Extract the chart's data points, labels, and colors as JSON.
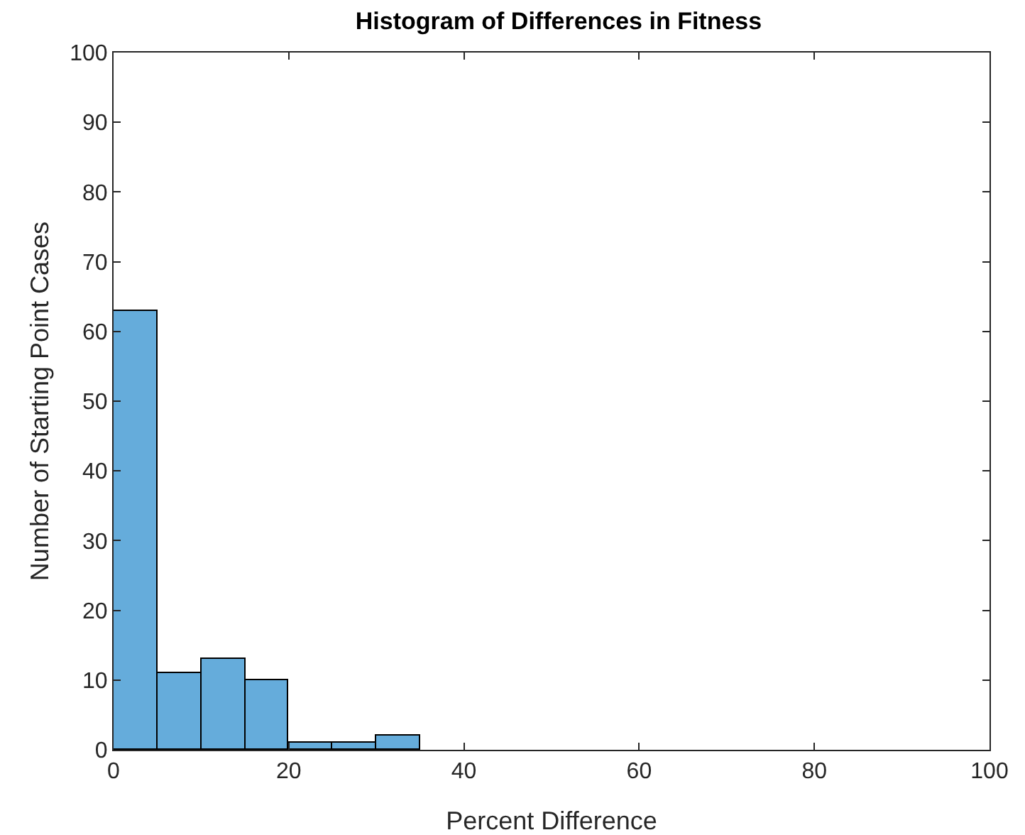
{
  "chart_data": {
    "type": "histogram",
    "title": "Histogram of Differences in Fitness",
    "xlabel": "Percent Difference",
    "ylabel": "Number of Starting Point Cases",
    "bins": [
      0,
      5,
      10,
      15,
      20,
      25,
      30,
      35
    ],
    "values": [
      63,
      11,
      13,
      10,
      1,
      1,
      2
    ],
    "color": "#65acdb",
    "xlim": [
      0,
      100
    ],
    "xticks": [
      0,
      20,
      40,
      60,
      80,
      100
    ],
    "ylim": [
      0,
      100
    ],
    "yticks": [
      0,
      10,
      20,
      30,
      40,
      50,
      60,
      70,
      80,
      90,
      100
    ],
    "grid": false
  }
}
